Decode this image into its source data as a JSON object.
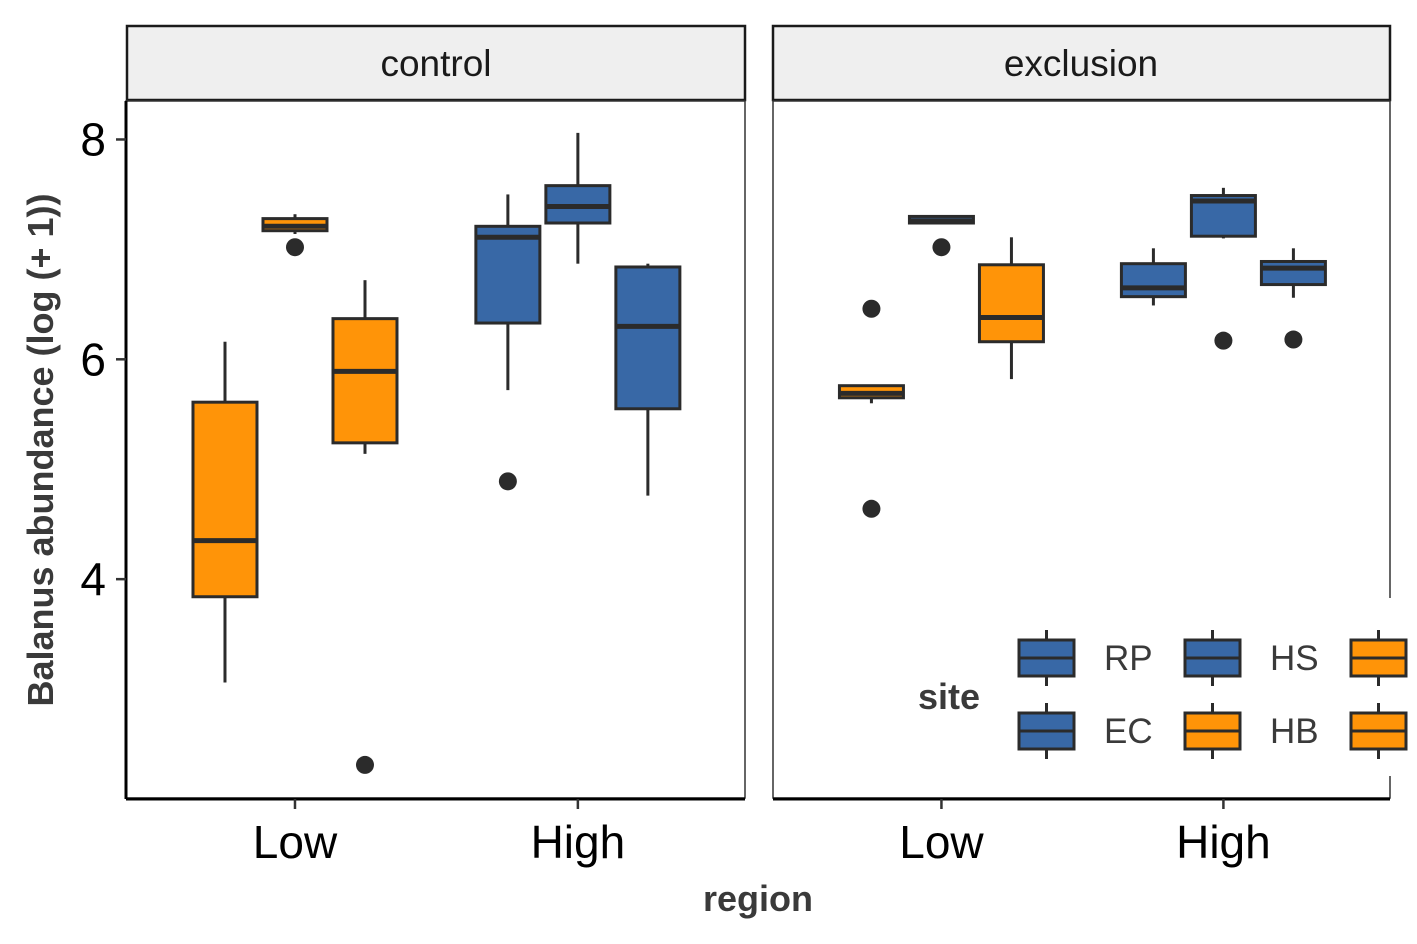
{
  "chart_data": {
    "type": "boxplot",
    "xlabel": "region",
    "ylabel": "Balanus abundance (log (+ 1))",
    "ylim": [
      2.0,
      8.35
    ],
    "y_ticks": [
      4,
      6,
      8
    ],
    "categories": [
      "Low",
      "High"
    ],
    "legend": {
      "title": "site",
      "placement": "bottom-right",
      "entries": [
        {
          "name": "RP",
          "color": "#3868A6"
        },
        {
          "name": "EC",
          "color": "#3868A6"
        },
        {
          "name": "HS",
          "color": "#3868A6"
        },
        {
          "name": "HB",
          "color": "#FF9408"
        },
        {
          "name": "",
          "color": "#FF9408"
        },
        {
          "name": "",
          "color": "#FF9408"
        }
      ]
    },
    "colors": {
      "blue": "#3868A6",
      "orange": "#FF9408"
    },
    "panels": [
      {
        "title": "control",
        "boxes": [
          {
            "region": "Low",
            "slot": 0,
            "color": "orange",
            "min": 3.06,
            "q1": 3.84,
            "median": 4.35,
            "q3": 5.61,
            "max": 6.16,
            "outliers": []
          },
          {
            "region": "Low",
            "slot": 1,
            "color": "orange",
            "min": 7.14,
            "q1": 7.17,
            "median": 7.21,
            "q3": 7.28,
            "max": 7.32,
            "outliers": [
              7.02
            ]
          },
          {
            "region": "Low",
            "slot": 2,
            "color": "orange",
            "min": 5.14,
            "q1": 5.24,
            "median": 5.89,
            "q3": 6.37,
            "max": 6.72,
            "outliers": [
              2.31
            ]
          },
          {
            "region": "High",
            "slot": 0,
            "color": "blue",
            "min": 5.72,
            "q1": 6.33,
            "median": 7.11,
            "q3": 7.21,
            "max": 7.5,
            "outliers": [
              4.89
            ]
          },
          {
            "region": "High",
            "slot": 1,
            "color": "blue",
            "min": 6.87,
            "q1": 7.24,
            "median": 7.39,
            "q3": 7.58,
            "max": 8.06,
            "outliers": []
          },
          {
            "region": "High",
            "slot": 2,
            "color": "blue",
            "min": 4.76,
            "q1": 5.55,
            "median": 6.3,
            "q3": 6.84,
            "max": 6.87,
            "outliers": []
          }
        ]
      },
      {
        "title": "exclusion",
        "boxes": [
          {
            "region": "Low",
            "slot": 0,
            "color": "orange",
            "min": 5.6,
            "q1": 5.65,
            "median": 5.69,
            "q3": 5.76,
            "max": 5.77,
            "outliers": [
              6.46,
              4.64
            ]
          },
          {
            "region": "Low",
            "slot": 1,
            "color": "blue",
            "min": 7.24,
            "q1": 7.24,
            "median": 7.26,
            "q3": 7.3,
            "max": 7.3,
            "outliers": [
              7.02
            ]
          },
          {
            "region": "Low",
            "slot": 2,
            "color": "orange",
            "min": 5.82,
            "q1": 6.16,
            "median": 6.38,
            "q3": 6.86,
            "max": 7.11,
            "outliers": []
          },
          {
            "region": "High",
            "slot": 0,
            "color": "blue",
            "min": 6.49,
            "q1": 6.57,
            "median": 6.65,
            "q3": 6.87,
            "max": 7.01,
            "outliers": []
          },
          {
            "region": "High",
            "slot": 1,
            "color": "blue",
            "min": 7.1,
            "q1": 7.12,
            "median": 7.44,
            "q3": 7.49,
            "max": 7.56,
            "outliers": [
              6.17
            ]
          },
          {
            "region": "High",
            "slot": 2,
            "color": "blue",
            "min": 6.56,
            "q1": 6.68,
            "median": 6.83,
            "q3": 6.89,
            "max": 7.01,
            "outliers": [
              6.18
            ]
          }
        ]
      }
    ]
  }
}
